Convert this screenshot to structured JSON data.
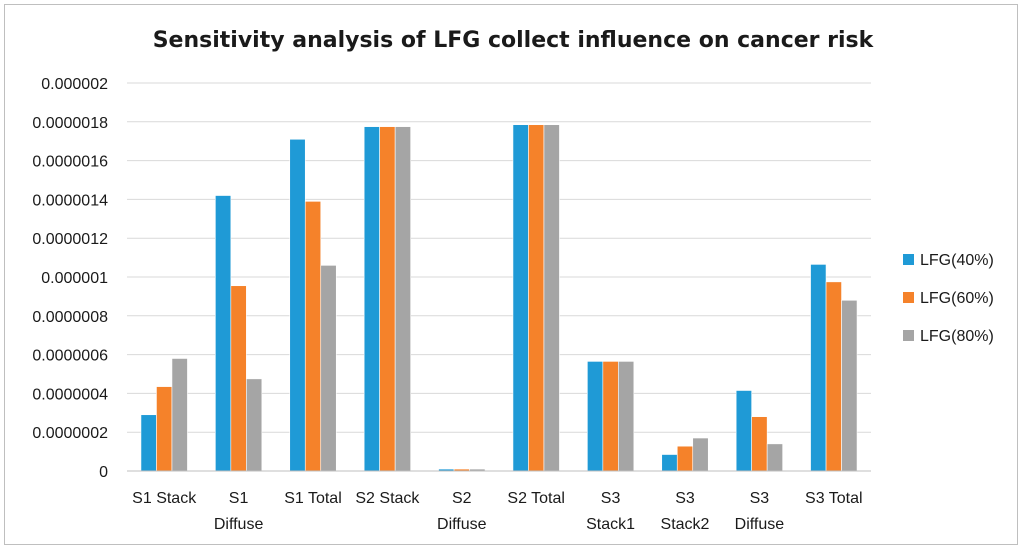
{
  "chart_data": {
    "type": "bar",
    "title": "Sensitivity analysis of LFG collect influence on cancer risk",
    "xlabel": "",
    "ylabel": "",
    "ylim": [
      0,
      2e-06
    ],
    "yticks": [
      "0",
      "0.0000002",
      "0.0000004",
      "0.0000006",
      "0.0000008",
      "0.000001",
      "0.0000012",
      "0.0000014",
      "0.0000016",
      "0.0000018",
      "0.000002"
    ],
    "grid": true,
    "legend_position": "right",
    "categories": [
      [
        "S1 Stack"
      ],
      [
        "S1",
        "Diffuse"
      ],
      [
        "S1 Total"
      ],
      [
        "S2 Stack"
      ],
      [
        "S2",
        "Diffuse"
      ],
      [
        "S2 Total"
      ],
      [
        "S3",
        "Stack1"
      ],
      [
        "S3",
        "Stack2"
      ],
      [
        "S3",
        "Diffuse"
      ],
      [
        "S3 Total"
      ]
    ],
    "series": [
      {
        "name": "LFG(40%)",
        "color": "#1f9ad6",
        "values": [
          2.9e-07,
          1.42e-06,
          1.71e-06,
          1.775e-06,
          1e-08,
          1.785e-06,
          5.65e-07,
          8.5e-08,
          4.15e-07,
          1.065e-06
        ]
      },
      {
        "name": "LFG(60%)",
        "color": "#f5822a",
        "values": [
          4.35e-07,
          9.55e-07,
          1.39e-06,
          1.775e-06,
          1e-08,
          1.785e-06,
          5.65e-07,
          1.28e-07,
          2.8e-07,
          9.75e-07
        ]
      },
      {
        "name": "LFG(80%)",
        "color": "#a5a5a5",
        "values": [
          5.8e-07,
          4.75e-07,
          1.06e-06,
          1.775e-06,
          1e-08,
          1.785e-06,
          5.65e-07,
          1.7e-07,
          1.4e-07,
          8.8e-07
        ]
      }
    ]
  }
}
